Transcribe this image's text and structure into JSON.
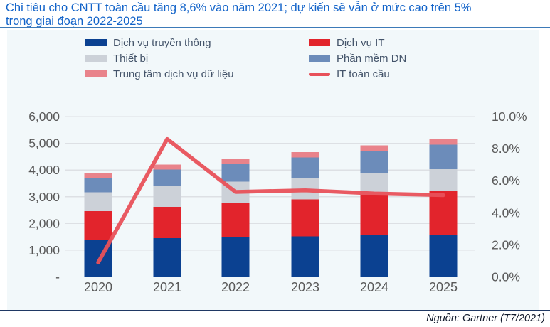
{
  "title": {
    "line1": "Chi tiêu cho CNTT toàn cầu tăng 8,6% vào năm 2021; dự kiến sẽ vẫn ở mức cao trên 5%",
    "line2": "trong giai đoạn 2022-2025",
    "full": "Chi tiêu cho CNTT toàn cầu tăng 8,6% vào năm 2021; dự kiến sẽ vẫn ở mức cao trên 5% trong giai đoạn 2022-2025",
    "color": "#1263c9"
  },
  "source": "Nguồn: Gartner (T7/2021)",
  "legend": [
    {
      "label": "Dịch vụ truyền thông",
      "color": "#0b4191",
      "type": "box"
    },
    {
      "label": "Dịch vụ IT",
      "color": "#e2242c",
      "type": "box"
    },
    {
      "label": "Thiết bị",
      "color": "#ccd1d8",
      "type": "box"
    },
    {
      "label": "Phần mềm DN",
      "color": "#6c8cba",
      "type": "box"
    },
    {
      "label": "Trung tâm dịch vụ dữ liệu",
      "color": "#e9838b",
      "type": "line-thick"
    },
    {
      "label": "IT toàn cầu",
      "color": "#e8515a",
      "type": "line"
    }
  ],
  "chart_data": {
    "type": "bar",
    "subtype": "stacked-bars-with-line-overlay",
    "categories": [
      "2020",
      "2021",
      "2022",
      "2023",
      "2024",
      "2025"
    ],
    "series": [
      {
        "name": "Dịch vụ truyền thông",
        "color": "#0b4191",
        "values": [
          1396,
          1445,
          1482,
          1520,
          1550,
          1580
        ]
      },
      {
        "name": "Dịch vụ IT",
        "color": "#e2242c",
        "values": [
          1071,
          1177,
          1277,
          1380,
          1500,
          1620
        ]
      },
      {
        "name": "Thiết bị",
        "color": "#ccd1d8",
        "values": [
          697,
          794,
          800,
          810,
          825,
          830
        ]
      },
      {
        "name": "Phần mềm DN",
        "color": "#6c8cba",
        "values": [
          529,
          599,
          669,
          755,
          830,
          915
        ]
      },
      {
        "name": "Trung tâm dịch vụ dữ liệu",
        "color": "#e9838b",
        "values": [
          178,
          192,
          202,
          210,
          220,
          235
        ]
      }
    ],
    "totals": [
      3871,
      4207,
      4430,
      4675,
      4925,
      5180
    ],
    "line_series": {
      "name": "IT toàn cầu",
      "color": "#e8515a",
      "values_pct": [
        0.9,
        8.6,
        5.3,
        5.4,
        5.2,
        5.1
      ]
    },
    "left_axis": {
      "min": 0,
      "max": 6000,
      "tick_step": 1000,
      "tick_labels": [
        "-",
        "1,000",
        "2,000",
        "3,000",
        "4,000",
        "5,000",
        "6,000"
      ]
    },
    "right_axis": {
      "min": 0,
      "max": 10,
      "tick_step": 2,
      "tick_labels": [
        "0.0%",
        "2.0%",
        "4.0%",
        "6.0%",
        "8.0%",
        "10.0%"
      ]
    },
    "grid": true,
    "legend_position": "top",
    "plot_bg_color": "#f2f8fa",
    "gridline_color": "#dde0e4",
    "axis_text_color": "#595959"
  }
}
